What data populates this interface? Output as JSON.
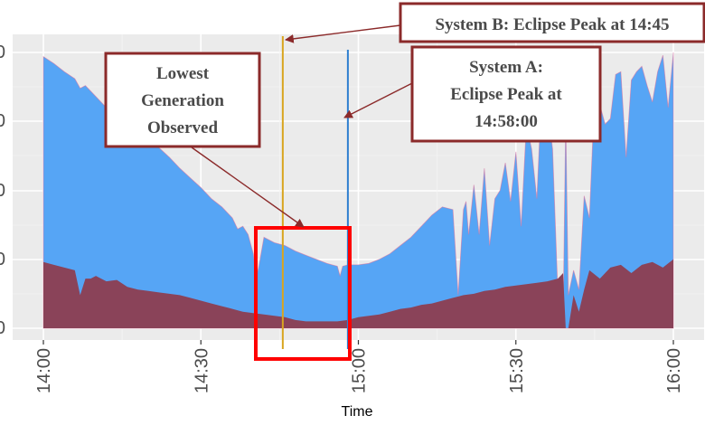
{
  "chart_data": {
    "type": "area",
    "title": "",
    "xlabel": "Time",
    "ylabel": "",
    "x_tick_labels": [
      "14:00",
      "14:30",
      "15:00",
      "15:30",
      "16:00"
    ],
    "x_tick_minutes": [
      0,
      30,
      60,
      90,
      120
    ],
    "xlim_minutes": [
      -2.5,
      124.2
    ],
    "y_relative_range": [
      0,
      1
    ],
    "grid": true,
    "legend": "none",
    "series": [
      {
        "color": "#56a5f5",
        "x_minutes": [
          0,
          2,
          4,
          6,
          7,
          8,
          10,
          12,
          14,
          16,
          17,
          18,
          20,
          22,
          24,
          26,
          28,
          30,
          32,
          34,
          36,
          37,
          38,
          39,
          40,
          40.5,
          41,
          42,
          43,
          44,
          46,
          48,
          50,
          52,
          54,
          55,
          56,
          56.5,
          57,
          58,
          60,
          62,
          64,
          66,
          68,
          70,
          72,
          74,
          76,
          78,
          79,
          80,
          80.5,
          81,
          82,
          83,
          84,
          85,
          86,
          87,
          88,
          89,
          90,
          91,
          92,
          93,
          94,
          95,
          96,
          97,
          98,
          99,
          99.5,
          100,
          101,
          102,
          103,
          104,
          105,
          106,
          107,
          108,
          109,
          110,
          111,
          112,
          113,
          114,
          115,
          116,
          117,
          118,
          119,
          120
        ],
        "values": [
          0.985,
          0.96,
          0.93,
          0.905,
          0.87,
          0.88,
          0.84,
          0.8,
          0.785,
          0.74,
          0.76,
          0.72,
          0.69,
          0.655,
          0.62,
          0.58,
          0.545,
          0.51,
          0.47,
          0.44,
          0.4,
          0.36,
          0.37,
          0.34,
          0.27,
          0.18,
          0.22,
          0.33,
          0.32,
          0.31,
          0.3,
          0.28,
          0.265,
          0.25,
          0.235,
          0.23,
          0.225,
          0.19,
          0.225,
          0.23,
          0.23,
          0.235,
          0.25,
          0.27,
          0.3,
          0.33,
          0.37,
          0.41,
          0.44,
          0.43,
          0.12,
          0.43,
          0.46,
          0.34,
          0.52,
          0.34,
          0.58,
          0.3,
          0.47,
          0.5,
          0.6,
          0.46,
          0.64,
          0.37,
          0.74,
          0.65,
          0.47,
          0.9,
          0.8,
          0.65,
          0.13,
          0.03,
          0.77,
          0.12,
          0.21,
          0.14,
          0.48,
          0.4,
          0.85,
          0.81,
          0.74,
          0.76,
          0.92,
          0.93,
          0.62,
          0.9,
          0.93,
          0.95,
          0.88,
          0.82,
          0.93,
          0.99,
          0.8,
          1.0
        ]
      },
      {
        "color": "#8a4359",
        "x_minutes": [
          0,
          2,
          4,
          6,
          7,
          8,
          9,
          10,
          12,
          14,
          16,
          18,
          20,
          22,
          24,
          26,
          28,
          30,
          32,
          34,
          36,
          38,
          40,
          42,
          44,
          46,
          48,
          50,
          52,
          54,
          56,
          58,
          60,
          62,
          64,
          66,
          68,
          70,
          72,
          74,
          76,
          78,
          80,
          82,
          84,
          86,
          88,
          90,
          92,
          94,
          96,
          98,
          99,
          99.5,
          100,
          101,
          102,
          103,
          104,
          106,
          108,
          110,
          112,
          114,
          116,
          118,
          120
        ],
        "values": [
          0.24,
          0.23,
          0.22,
          0.21,
          0.12,
          0.18,
          0.18,
          0.19,
          0.17,
          0.175,
          0.15,
          0.14,
          0.135,
          0.13,
          0.125,
          0.12,
          0.11,
          0.1,
          0.09,
          0.08,
          0.07,
          0.06,
          0.055,
          0.05,
          0.045,
          0.04,
          0.03,
          0.025,
          0.025,
          0.025,
          0.025,
          0.03,
          0.04,
          0.045,
          0.05,
          0.06,
          0.07,
          0.075,
          0.085,
          0.09,
          0.1,
          0.11,
          0.12,
          0.125,
          0.135,
          0.14,
          0.15,
          0.155,
          0.16,
          0.165,
          0.17,
          0.18,
          0.2,
          0.0,
          0.0,
          0.12,
          0.06,
          0.14,
          0.21,
          0.18,
          0.22,
          0.23,
          0.2,
          0.23,
          0.24,
          0.22,
          0.25
        ]
      }
    ],
    "vertical_lines": [
      {
        "x_minutes": 45.6,
        "color": "#d9a520"
      },
      {
        "x_minutes": 58.0,
        "color": "#2f7fd0"
      }
    ],
    "annotations": [
      {
        "text": [
          "System B: Eclipse Peak at 14:45"
        ]
      },
      {
        "text": [
          "System A:",
          "Eclipse Peak at",
          "14:58:00"
        ]
      },
      {
        "text": [
          "Lowest",
          "Generation",
          "Observed"
        ]
      }
    ],
    "highlight_box_color": "#ff0000",
    "callout_border_color": "#8b2a2a"
  }
}
